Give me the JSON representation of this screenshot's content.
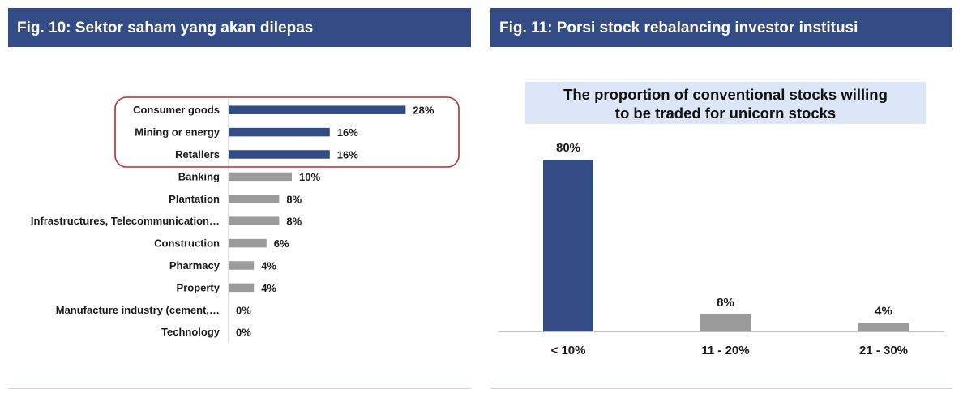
{
  "figures": [
    {
      "title": "Fig. 10: Sektor saham yang akan dilepas"
    },
    {
      "title": "Fig. 11: Porsi stock rebalancing investor institusi"
    }
  ],
  "colors": {
    "header_bg": "#344c86",
    "highlight": "#344c86",
    "neutral": "#9b9b9b",
    "highlight_box": "#c0282d",
    "chart_title_bg": "#dce6f7"
  },
  "chart_data": [
    {
      "type": "bar",
      "orientation": "horizontal",
      "title": "",
      "xlabel": "",
      "ylabel": "",
      "xlim": [
        0,
        30
      ],
      "grid": false,
      "categories": [
        "Consumer goods",
        "Mining or energy",
        "Retailers",
        "Banking",
        "Plantation",
        "Infrastructures, Telecommunication…",
        "Construction",
        "Pharmacy",
        "Property",
        "Manufacture industry (cement,…",
        "Technology"
      ],
      "values": [
        28,
        16,
        16,
        10,
        8,
        8,
        6,
        4,
        4,
        0,
        0
      ],
      "value_labels": [
        "28%",
        "16%",
        "16%",
        "10%",
        "8%",
        "8%",
        "6%",
        "4%",
        "4%",
        "0%",
        "0%"
      ],
      "highlighted_categories": [
        "Consumer goods",
        "Mining or energy",
        "Retailers"
      ]
    },
    {
      "type": "bar",
      "orientation": "vertical",
      "title": "The proportion of conventional stocks willing to be traded for unicorn stocks",
      "title_lines": [
        "The proportion of conventional stocks willing",
        "to be traded for unicorn stocks"
      ],
      "xlabel": "",
      "ylabel": "",
      "ylim": [
        0,
        80
      ],
      "grid": false,
      "categories": [
        "< 10%",
        "11 - 20%",
        "21 - 30%"
      ],
      "values": [
        80,
        8,
        4
      ],
      "value_labels": [
        "80%",
        "8%",
        "4%"
      ],
      "highlighted_categories": [
        "< 10%"
      ]
    }
  ]
}
